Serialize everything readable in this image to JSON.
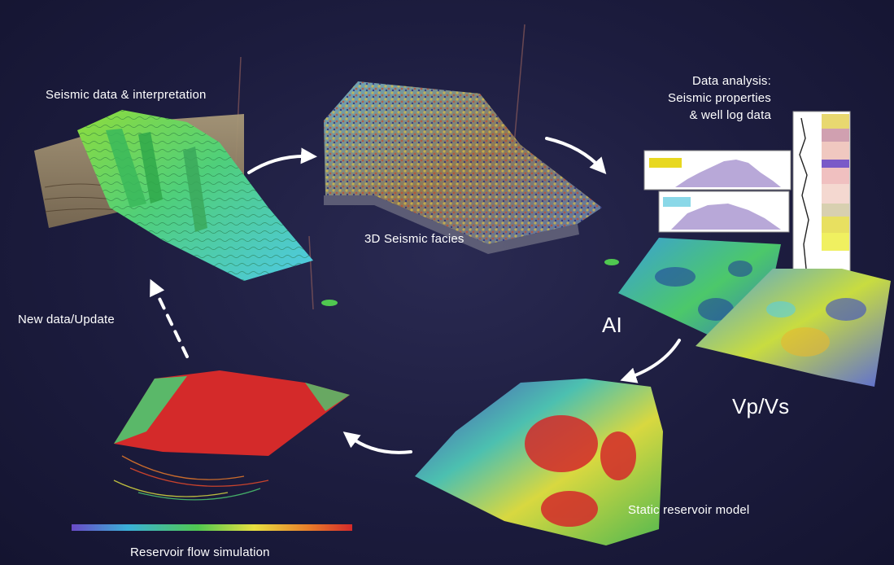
{
  "labels": {
    "seismic_data": "Seismic data & interpretation",
    "seismic_facies": "3D Seismic facies",
    "data_analysis_1": "Data analysis:",
    "data_analysis_2": "Seismic properties",
    "data_analysis_3": "& well log data",
    "ai": "AI",
    "vpvs": "Vp/Vs",
    "static_model": "Static reservoir model",
    "flow_sim": "Reservoir flow simulation",
    "new_data": "New data/Update"
  },
  "colors": {
    "background": "#1c1c3e",
    "arrow": "#ffffff",
    "reservoir_red": "#d42a2a",
    "surface_green": "#5fcf5a",
    "surface_cyan": "#4fd4d8",
    "low_blue": "#5a4fc8"
  },
  "icons": {
    "cycle_arrows": "curved-arrow-icon"
  }
}
